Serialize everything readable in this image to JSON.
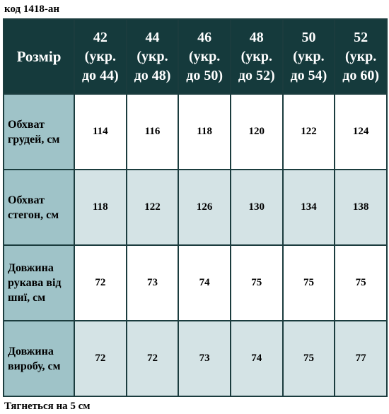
{
  "product_code": "код 1418-ан",
  "footer_note": "Тягнеться на 5 см",
  "table": {
    "corner_label": "Розмір",
    "columns": [
      {
        "size": "42",
        "ukr1": "(укр.",
        "ukr2": "до 44)"
      },
      {
        "size": "44",
        "ukr1": "(укр.",
        "ukr2": "до 48)"
      },
      {
        "size": "46",
        "ukr1": "(укр.",
        "ukr2": "до 50)"
      },
      {
        "size": "48",
        "ukr1": "(укр.",
        "ukr2": "до 52)"
      },
      {
        "size": "50",
        "ukr1": "(укр.",
        "ukr2": "до 54)"
      },
      {
        "size": "52",
        "ukr1": "(укр.",
        "ukr2": "до 60)"
      }
    ],
    "rows": [
      {
        "label_lines": [
          "Обхват",
          "грудей, см"
        ],
        "values": [
          "114",
          "116",
          "118",
          "120",
          "122",
          "124"
        ]
      },
      {
        "label_lines": [
          "Обхват",
          "стегон, см"
        ],
        "values": [
          "118",
          "122",
          "126",
          "130",
          "134",
          "138"
        ]
      },
      {
        "label_lines": [
          "Довжина",
          "рукава від",
          "шиї, см"
        ],
        "values": [
          "72",
          "73",
          "74",
          "75",
          "75",
          "75"
        ]
      },
      {
        "label_lines": [
          "Довжина",
          "виробу, см"
        ],
        "values": [
          "72",
          "72",
          "73",
          "74",
          "75",
          "77"
        ]
      }
    ]
  },
  "colors": {
    "header_bg": "#153a3c",
    "row_header_bg": "#9fc3c8",
    "alt_row_bg": "#d4e3e5",
    "border": "#1b3c3e"
  }
}
